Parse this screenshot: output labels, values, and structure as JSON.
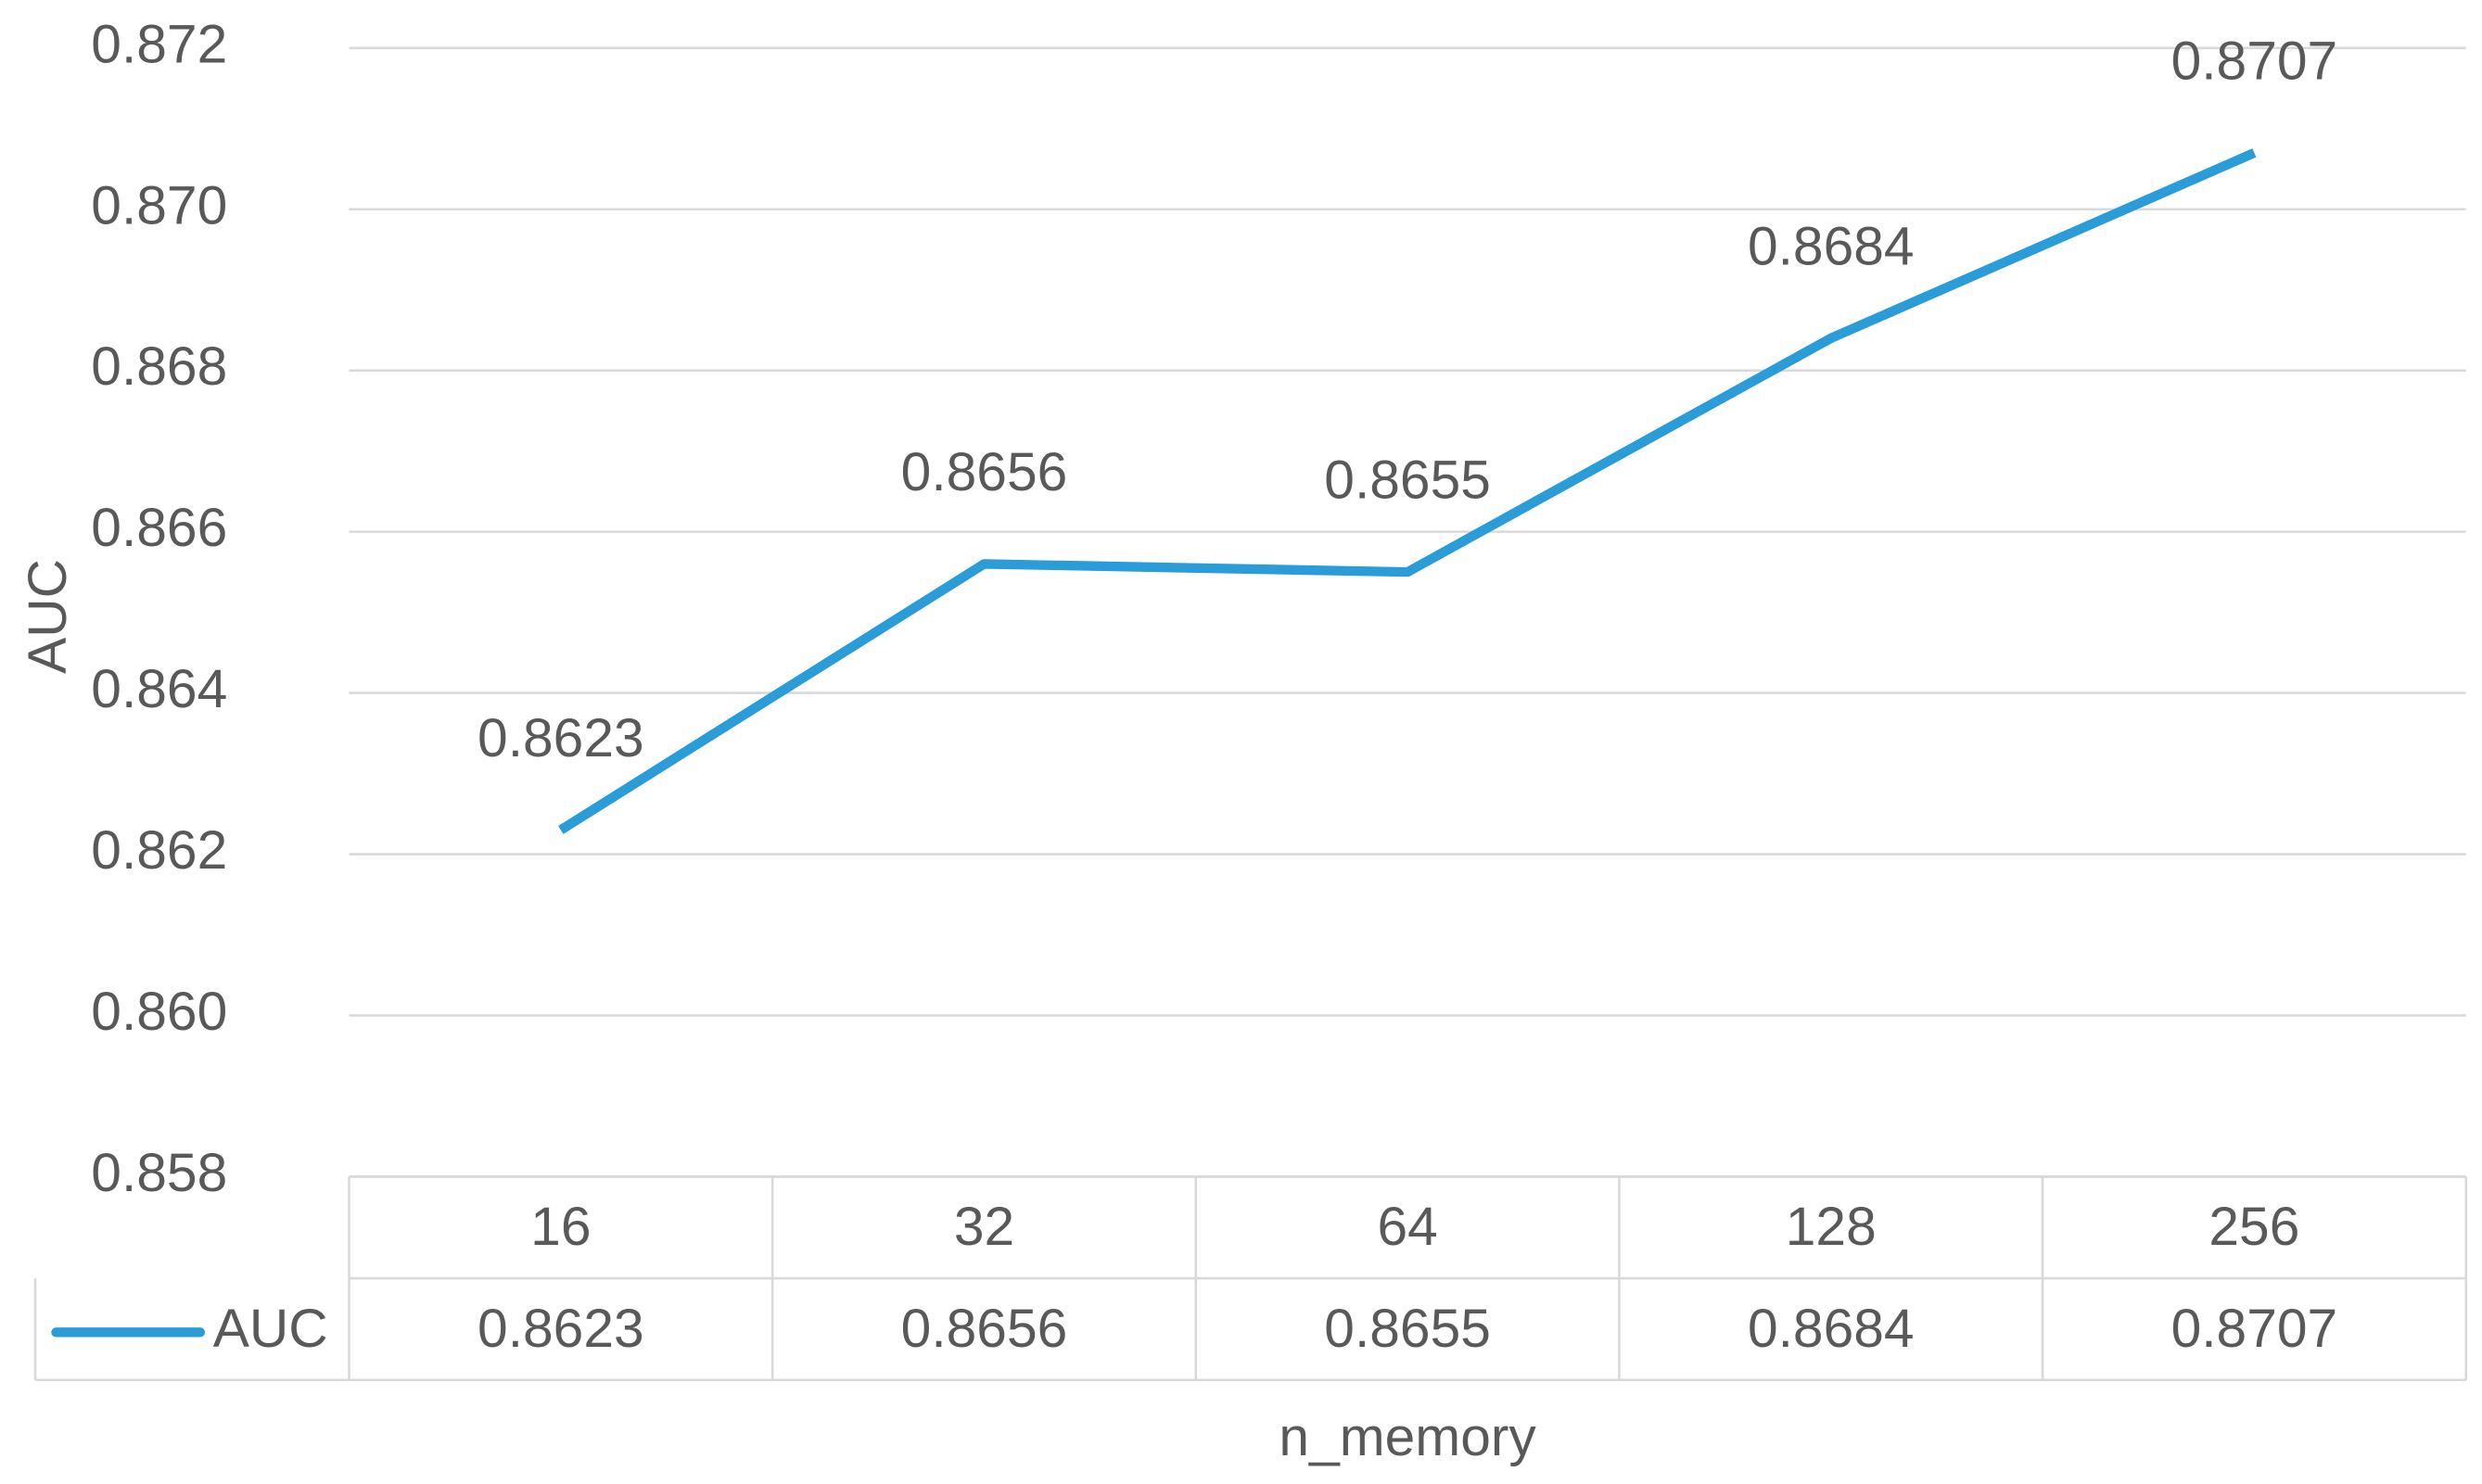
{
  "chart_data": {
    "type": "line",
    "x_label": "n_memory",
    "y_label": "AUC",
    "categories": [
      "16",
      "32",
      "64",
      "128",
      "256"
    ],
    "series": [
      {
        "name": "AUC",
        "color": "#2a9dd8",
        "values": [
          0.8623,
          0.8656,
          0.8655,
          0.8684,
          0.8707
        ]
      }
    ],
    "ylim": [
      0.858,
      0.872
    ],
    "yticks": [
      0.858,
      {
        "value": 0.86,
        "label": "0.860"
      },
      0.862,
      0.864,
      0.866,
      0.868,
      {
        "value": 0.87,
        "label": "0.870"
      },
      0.872
    ],
    "grid": true,
    "data_labels": true,
    "data_table": true
  }
}
